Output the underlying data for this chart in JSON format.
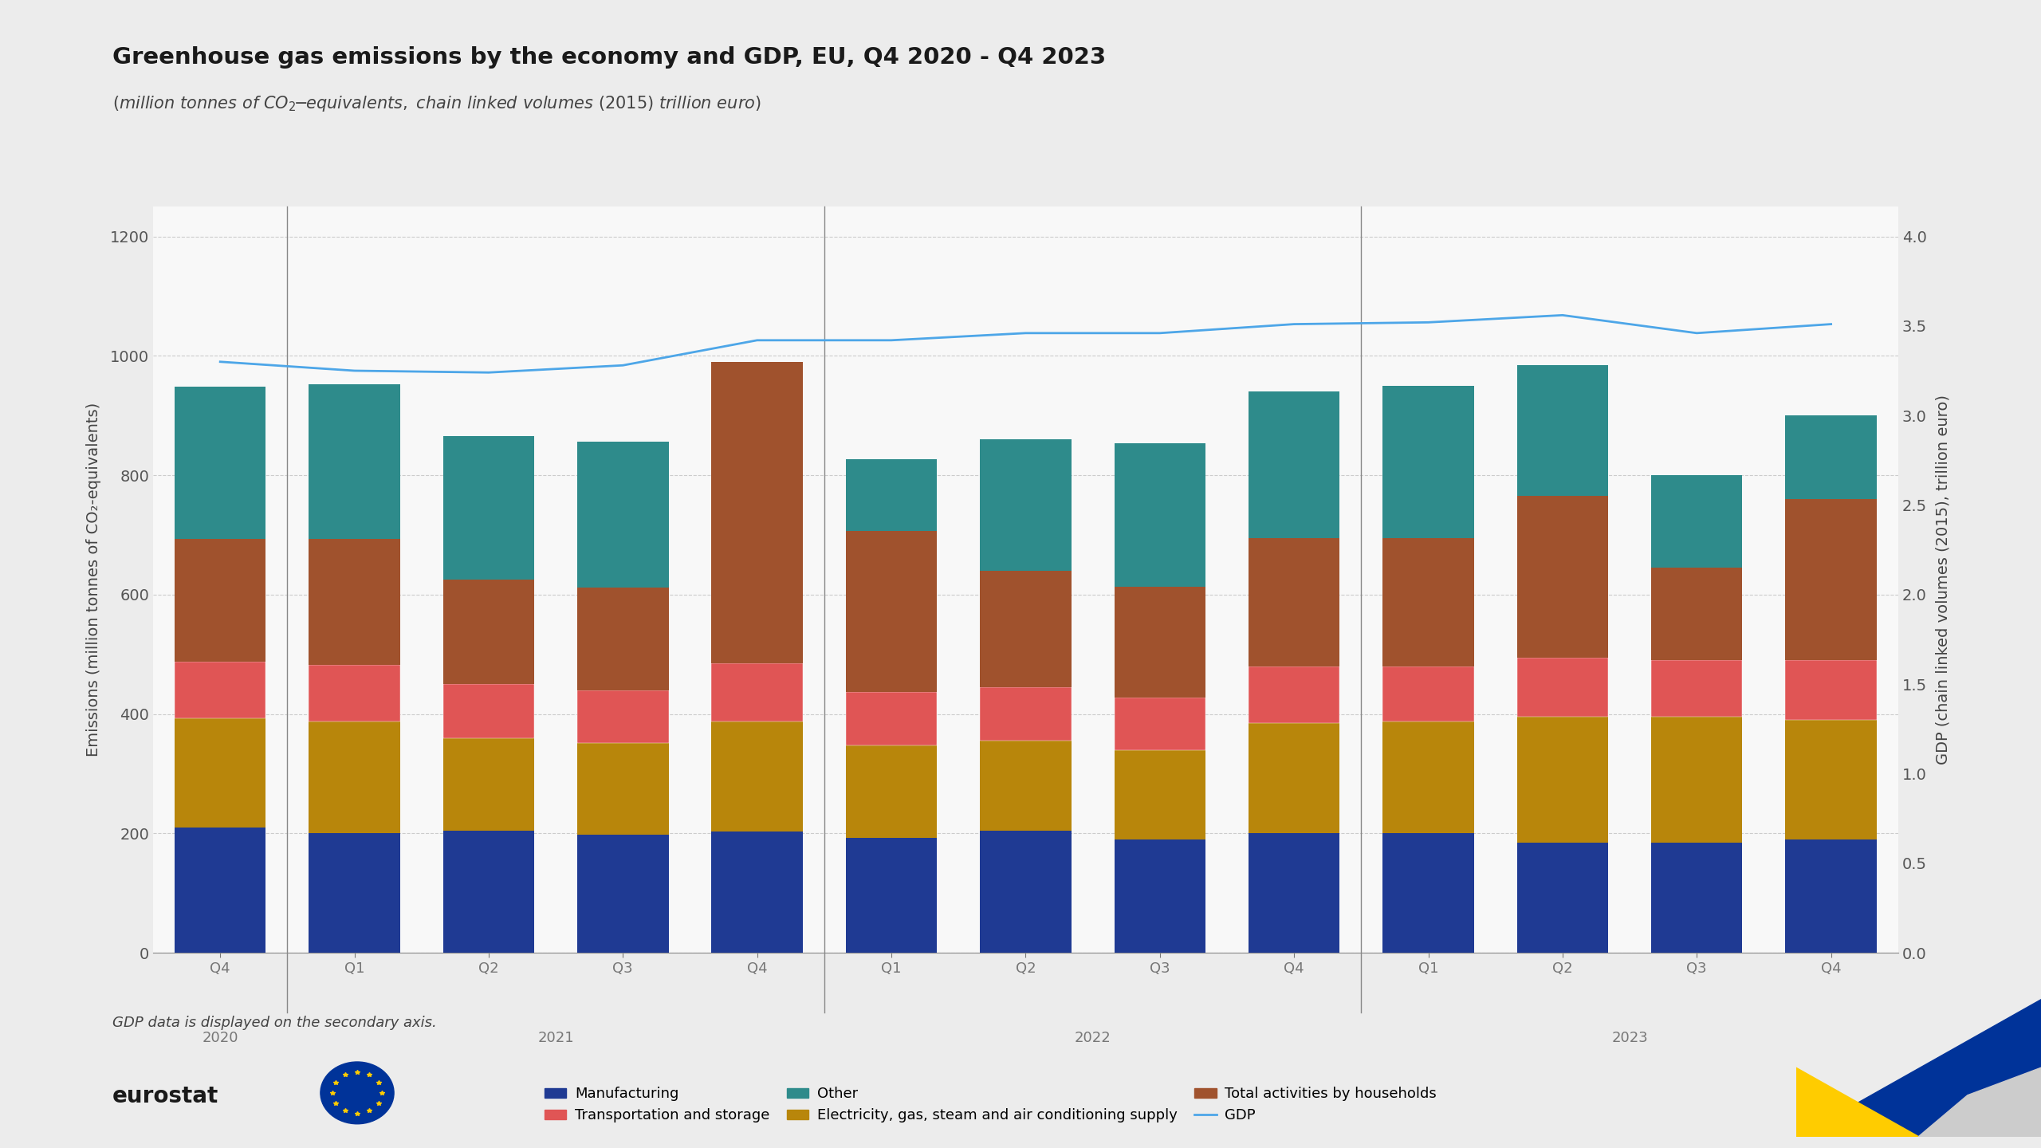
{
  "title": "Greenhouse gas emissions by the economy and GDP, EU, Q4 2020 - Q4 2023",
  "subtitle_parts": [
    "(million tonnes of CO",
    "2",
    "-equivalents, chain linked volumes (2015) trillion euro)"
  ],
  "ylabel_left": "Emissions (million tonnes of CO₂-equivalents)",
  "ylabel_right": "GDP (chain linked volumes (2015), trillion euro)",
  "note": "GDP data is displayed on the secondary axis.",
  "quarter_labels": [
    "Q4",
    "Q1",
    "Q2",
    "Q3",
    "Q4",
    "Q1",
    "Q2",
    "Q3",
    "Q4",
    "Q1",
    "Q2",
    "Q3",
    "Q4"
  ],
  "year_labels": [
    "2020",
    "2021",
    "2022",
    "2023"
  ],
  "manufacturing": [
    210,
    200,
    205,
    198,
    203,
    192,
    205,
    190,
    200,
    200,
    185,
    185,
    190
  ],
  "electricity": [
    183,
    188,
    155,
    153,
    185,
    155,
    150,
    150,
    185,
    188,
    210,
    210,
    200
  ],
  "transportation": [
    95,
    95,
    90,
    88,
    97,
    90,
    90,
    88,
    95,
    92,
    100,
    95,
    100
  ],
  "households": [
    205,
    210,
    175,
    173,
    505,
    270,
    195,
    185,
    215,
    215,
    270,
    155,
    270
  ],
  "other": [
    255,
    260,
    240,
    244,
    0,
    120,
    220,
    240,
    245,
    255,
    220,
    155,
    140
  ],
  "gdp": [
    3.3,
    3.25,
    3.24,
    3.28,
    3.42,
    3.42,
    3.46,
    3.46,
    3.51,
    3.52,
    3.56,
    3.46,
    3.51
  ],
  "colors": {
    "manufacturing": "#1f3a93",
    "electricity": "#b8860b",
    "transportation": "#e05555",
    "households": "#a0522d",
    "other": "#2e8b8b",
    "gdp": "#4da6e8"
  },
  "ylim_left": [
    0,
    1250
  ],
  "ylim_right": [
    0,
    4.166
  ],
  "yticks_left": [
    0,
    200,
    400,
    600,
    800,
    1000,
    1200
  ],
  "yticks_right": [
    0,
    0.5,
    1.0,
    1.5,
    2.0,
    2.5,
    3.0,
    3.5,
    4.0
  ],
  "background_color": "#ececec",
  "plot_background": "#f8f8f8",
  "bar_width": 0.68,
  "legend_order": [
    "manufacturing",
    "transportation",
    "other",
    "electricity",
    "households",
    "gdp"
  ],
  "legend_labels": [
    "Manufacturing",
    "Transportation and storage",
    "Other",
    "Electricity, gas, steam and air conditioning supply",
    "Total activities by households",
    "GDP"
  ]
}
